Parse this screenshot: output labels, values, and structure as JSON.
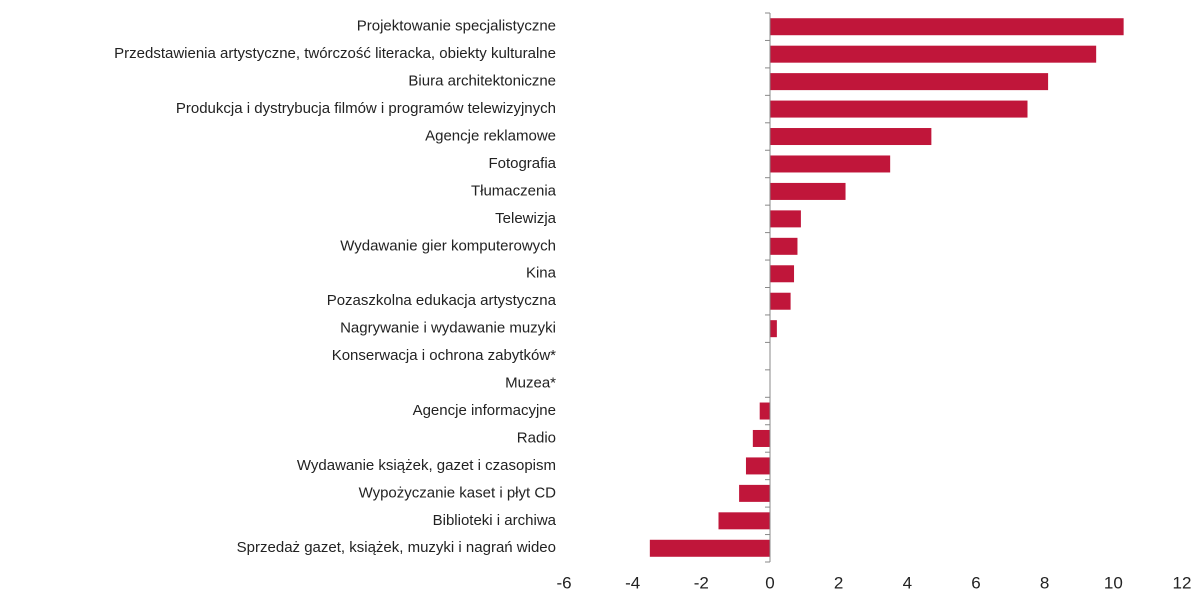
{
  "chart_data": {
    "type": "bar",
    "orientation": "horizontal",
    "categories": [
      "Projektowanie specjalistyczne",
      "Przedstawienia artystyczne, twórczość literacka, obiekty kulturalne",
      "Biura architektoniczne",
      "Produkcja i dystrybucja filmów i programów telewizyjnych",
      "Agencje reklamowe",
      "Fotografia",
      "Tłumaczenia",
      "Telewizja",
      "Wydawanie gier komputerowych",
      "Kina",
      "Pozaszkolna edukacja artystyczna",
      "Nagrywanie i wydawanie muzyki",
      "Konserwacja i ochrona zabytków*",
      "Muzea*",
      "Agencje informacyjne",
      "Radio",
      "Wydawanie książek, gazet i czasopism",
      "Wypożyczanie kaset i płyt CD",
      "Biblioteki i archiwa",
      "Sprzedaż gazet, książek, muzyki i nagrań wideo"
    ],
    "values": [
      10.3,
      9.5,
      8.1,
      7.5,
      4.7,
      3.5,
      2.2,
      0.9,
      0.8,
      0.7,
      0.6,
      0.2,
      null,
      null,
      -0.3,
      -0.5,
      -0.7,
      -0.9,
      -1.5,
      -3.5
    ],
    "color": "#c0163a",
    "xlim": [
      -6,
      12
    ],
    "xticks": [
      -6,
      -4,
      -2,
      0,
      2,
      4,
      6,
      8,
      10,
      12
    ],
    "grid": false
  }
}
